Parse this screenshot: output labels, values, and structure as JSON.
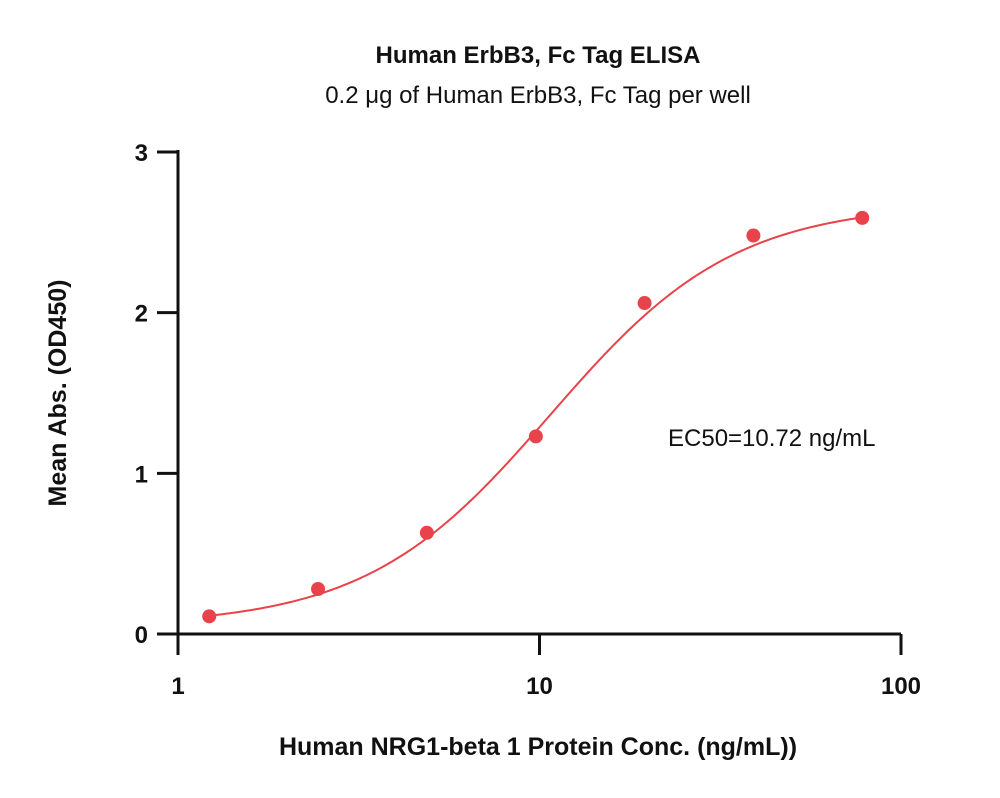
{
  "chart_data": {
    "type": "scatter",
    "title": "Human ErbB3, Fc Tag ELISA",
    "subtitle": "0.2 μg of Human ErbB3, Fc Tag per well",
    "xlabel": "Human NRG1-beta 1 Protein Conc. (ng/mL))",
    "ylabel": "Mean Abs. (OD450)",
    "x_scale": "log",
    "xlim": [
      1,
      100
    ],
    "ylim": [
      0,
      3
    ],
    "x_ticks": [
      1,
      10,
      100
    ],
    "x_tick_labels": [
      "1",
      "10",
      "100"
    ],
    "y_ticks": [
      0,
      1,
      2,
      3
    ],
    "y_tick_labels": [
      "0",
      "1",
      "2",
      "3"
    ],
    "grid": false,
    "legend": "none",
    "series": [
      {
        "x": [
          1.22,
          2.44,
          4.88,
          9.77,
          19.53,
          39.06,
          78.13
        ],
        "y": [
          0.11,
          0.28,
          0.63,
          1.23,
          2.06,
          2.48,
          2.59
        ]
      }
    ],
    "fit_curve": {
      "model": "4PL",
      "bottom": 0.05,
      "top": 2.68,
      "ec50": 10.72,
      "hill": 1.7
    },
    "annotations": [
      "EC50=10.72 ng/mL"
    ],
    "colors": {
      "points": "#e8434a",
      "curve": "#e8434a",
      "axes": "#111111"
    }
  }
}
